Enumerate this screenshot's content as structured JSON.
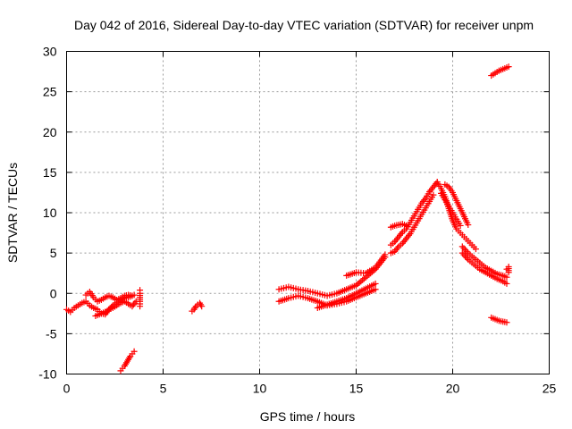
{
  "chart_data": {
    "type": "scatter",
    "title": "Day 042 of 2016, Sidereal Day-to-day VTEC variation (SDTVAR) for receiver unpm",
    "xlabel": "GPS time / hours",
    "ylabel": "SDTVAR / TECUs",
    "xlim": [
      0,
      25
    ],
    "ylim": [
      -10,
      30
    ],
    "xticks": [
      0,
      5,
      10,
      15,
      20,
      25
    ],
    "yticks": [
      -10,
      -5,
      0,
      5,
      10,
      15,
      20,
      25,
      30
    ],
    "grid": true,
    "marker": "+",
    "color": "#ff0000",
    "series": [
      {
        "name": "SDTVAR",
        "segments": [
          {
            "x": [
              0.0,
              0.2,
              0.4,
              0.6,
              0.8,
              1.0,
              1.2,
              1.4,
              1.6,
              1.8,
              2.0,
              2.2,
              2.4,
              2.6,
              2.8,
              3.0,
              3.2,
              3.4,
              3.6
            ],
            "y": [
              -2.0,
              -2.3,
              -1.8,
              -1.5,
              -1.2,
              -1.0,
              -1.5,
              -1.8,
              -2.0,
              -2.5,
              -2.6,
              -2.0,
              -1.8,
              -1.5,
              -1.2,
              -1.0,
              -1.3,
              -1.6,
              -1.0
            ]
          },
          {
            "x": [
              1.0,
              1.2,
              1.4,
              1.6,
              1.8,
              2.0,
              2.2,
              2.4,
              2.6,
              2.8,
              3.0,
              3.2,
              3.4
            ],
            "y": [
              -0.2,
              0.2,
              -0.5,
              -1.0,
              -0.8,
              -0.5,
              -0.3,
              -0.5,
              -0.8,
              -0.6,
              -0.3,
              -0.2,
              -0.3
            ]
          },
          {
            "x": [
              1.5,
              1.8,
              2.1,
              2.4,
              2.7,
              3.0,
              3.3,
              3.5
            ],
            "y": [
              -2.8,
              -2.5,
              -2.2,
              -1.5,
              -1.0,
              -0.6,
              -0.4,
              -0.2
            ]
          },
          {
            "x": [
              3.8,
              3.8,
              3.8,
              3.8,
              3.8
            ],
            "y": [
              -1.6,
              -1.0,
              -0.5,
              0.0,
              0.4
            ]
          },
          {
            "x": [
              2.8,
              2.9,
              3.0,
              3.1,
              3.2,
              3.3,
              3.4,
              3.5
            ],
            "y": [
              -9.6,
              -9.3,
              -9.0,
              -8.6,
              -8.2,
              -7.8,
              -7.5,
              -7.2
            ]
          },
          {
            "x": [
              6.5,
              6.6,
              6.7,
              6.8,
              6.9,
              7.0
            ],
            "y": [
              -2.2,
              -2.0,
              -1.6,
              -1.4,
              -1.2,
              -1.6
            ]
          },
          {
            "x": [
              11.0,
              11.5,
              12.0,
              12.5,
              13.0,
              13.5,
              14.0,
              14.5,
              15.0,
              15.5,
              16.0
            ],
            "y": [
              -1.0,
              -0.6,
              -0.3,
              -0.6,
              -1.0,
              -1.5,
              -1.3,
              -1.0,
              -0.5,
              0.0,
              0.5
            ]
          },
          {
            "x": [
              11.0,
              11.5,
              12.0,
              12.5,
              13.0,
              13.5,
              14.0,
              14.5,
              15.0,
              15.5,
              16.0,
              16.5
            ],
            "y": [
              0.5,
              0.8,
              0.5,
              0.3,
              0.0,
              -0.3,
              0.0,
              0.5,
              1.0,
              2.0,
              3.0,
              4.5
            ]
          },
          {
            "x": [
              13.0,
              13.5,
              14.0,
              14.5,
              15.0,
              15.5,
              16.0
            ],
            "y": [
              -1.8,
              -1.4,
              -1.0,
              -0.6,
              0.0,
              0.6,
              1.2
            ]
          },
          {
            "x": [
              14.5,
              15.0,
              15.5,
              16.0,
              16.5
            ],
            "y": [
              2.2,
              2.6,
              2.5,
              3.2,
              4.8
            ]
          },
          {
            "x": [
              16.8,
              17.0,
              17.2,
              17.4,
              17.6,
              17.8,
              18.0,
              18.2,
              18.4,
              18.6,
              18.8,
              19.0,
              19.2
            ],
            "y": [
              6.0,
              6.4,
              7.0,
              7.6,
              8.0,
              8.8,
              9.6,
              10.4,
              11.2,
              11.8,
              12.6,
              13.2,
              13.8
            ]
          },
          {
            "x": [
              16.8,
              17.0,
              17.2,
              17.4,
              17.6,
              17.8,
              18.0,
              18.2,
              18.4,
              18.6,
              18.8,
              19.0
            ],
            "y": [
              5.0,
              5.2,
              5.8,
              6.2,
              6.8,
              7.4,
              8.2,
              9.0,
              9.8,
              10.6,
              11.4,
              12.2
            ]
          },
          {
            "x": [
              16.8,
              17.0,
              17.2,
              17.4,
              17.6
            ],
            "y": [
              8.2,
              8.4,
              8.5,
              8.6,
              8.4
            ]
          },
          {
            "x": [
              19.2,
              19.4,
              19.6,
              19.8,
              20.0,
              20.2,
              20.4,
              20.6,
              20.8,
              21.0,
              21.2
            ],
            "y": [
              13.8,
              13.0,
              12.0,
              10.5,
              9.0,
              8.0,
              7.5,
              7.0,
              6.5,
              6.0,
              5.5
            ]
          },
          {
            "x": [
              19.4,
              19.6,
              19.8,
              20.0,
              20.2,
              20.4
            ],
            "y": [
              12.4,
              11.6,
              10.8,
              10.0,
              9.2,
              8.4
            ]
          },
          {
            "x": [
              19.6,
              19.8,
              20.0,
              20.2,
              20.4,
              20.6,
              20.8
            ],
            "y": [
              13.5,
              13.2,
              12.5,
              11.5,
              10.5,
              9.5,
              8.5
            ]
          },
          {
            "x": [
              20.5,
              20.8,
              21.1,
              21.4,
              21.7,
              22.0,
              22.3,
              22.6,
              22.8
            ],
            "y": [
              5.0,
              4.2,
              3.6,
              3.0,
              2.6,
              2.2,
              1.8,
              1.5,
              1.2
            ]
          },
          {
            "x": [
              20.5,
              20.8,
              21.1,
              21.4,
              21.7,
              22.0,
              22.3,
              22.6,
              22.8
            ],
            "y": [
              5.8,
              5.0,
              4.4,
              3.8,
              3.2,
              2.8,
              2.4,
              2.2,
              2.0
            ]
          },
          {
            "x": [
              22.8,
              22.9,
              22.9
            ],
            "y": [
              3.0,
              3.3,
              2.6
            ]
          },
          {
            "x": [
              22.0,
              22.2,
              22.4,
              22.6,
              22.8
            ],
            "y": [
              -3.0,
              -3.2,
              -3.4,
              -3.5,
              -3.6
            ]
          },
          {
            "x": [
              22.0,
              22.2,
              22.4,
              22.6,
              22.8,
              22.9
            ],
            "y": [
              27.0,
              27.3,
              27.6,
              27.8,
              28.0,
              28.1
            ]
          }
        ]
      }
    ]
  }
}
